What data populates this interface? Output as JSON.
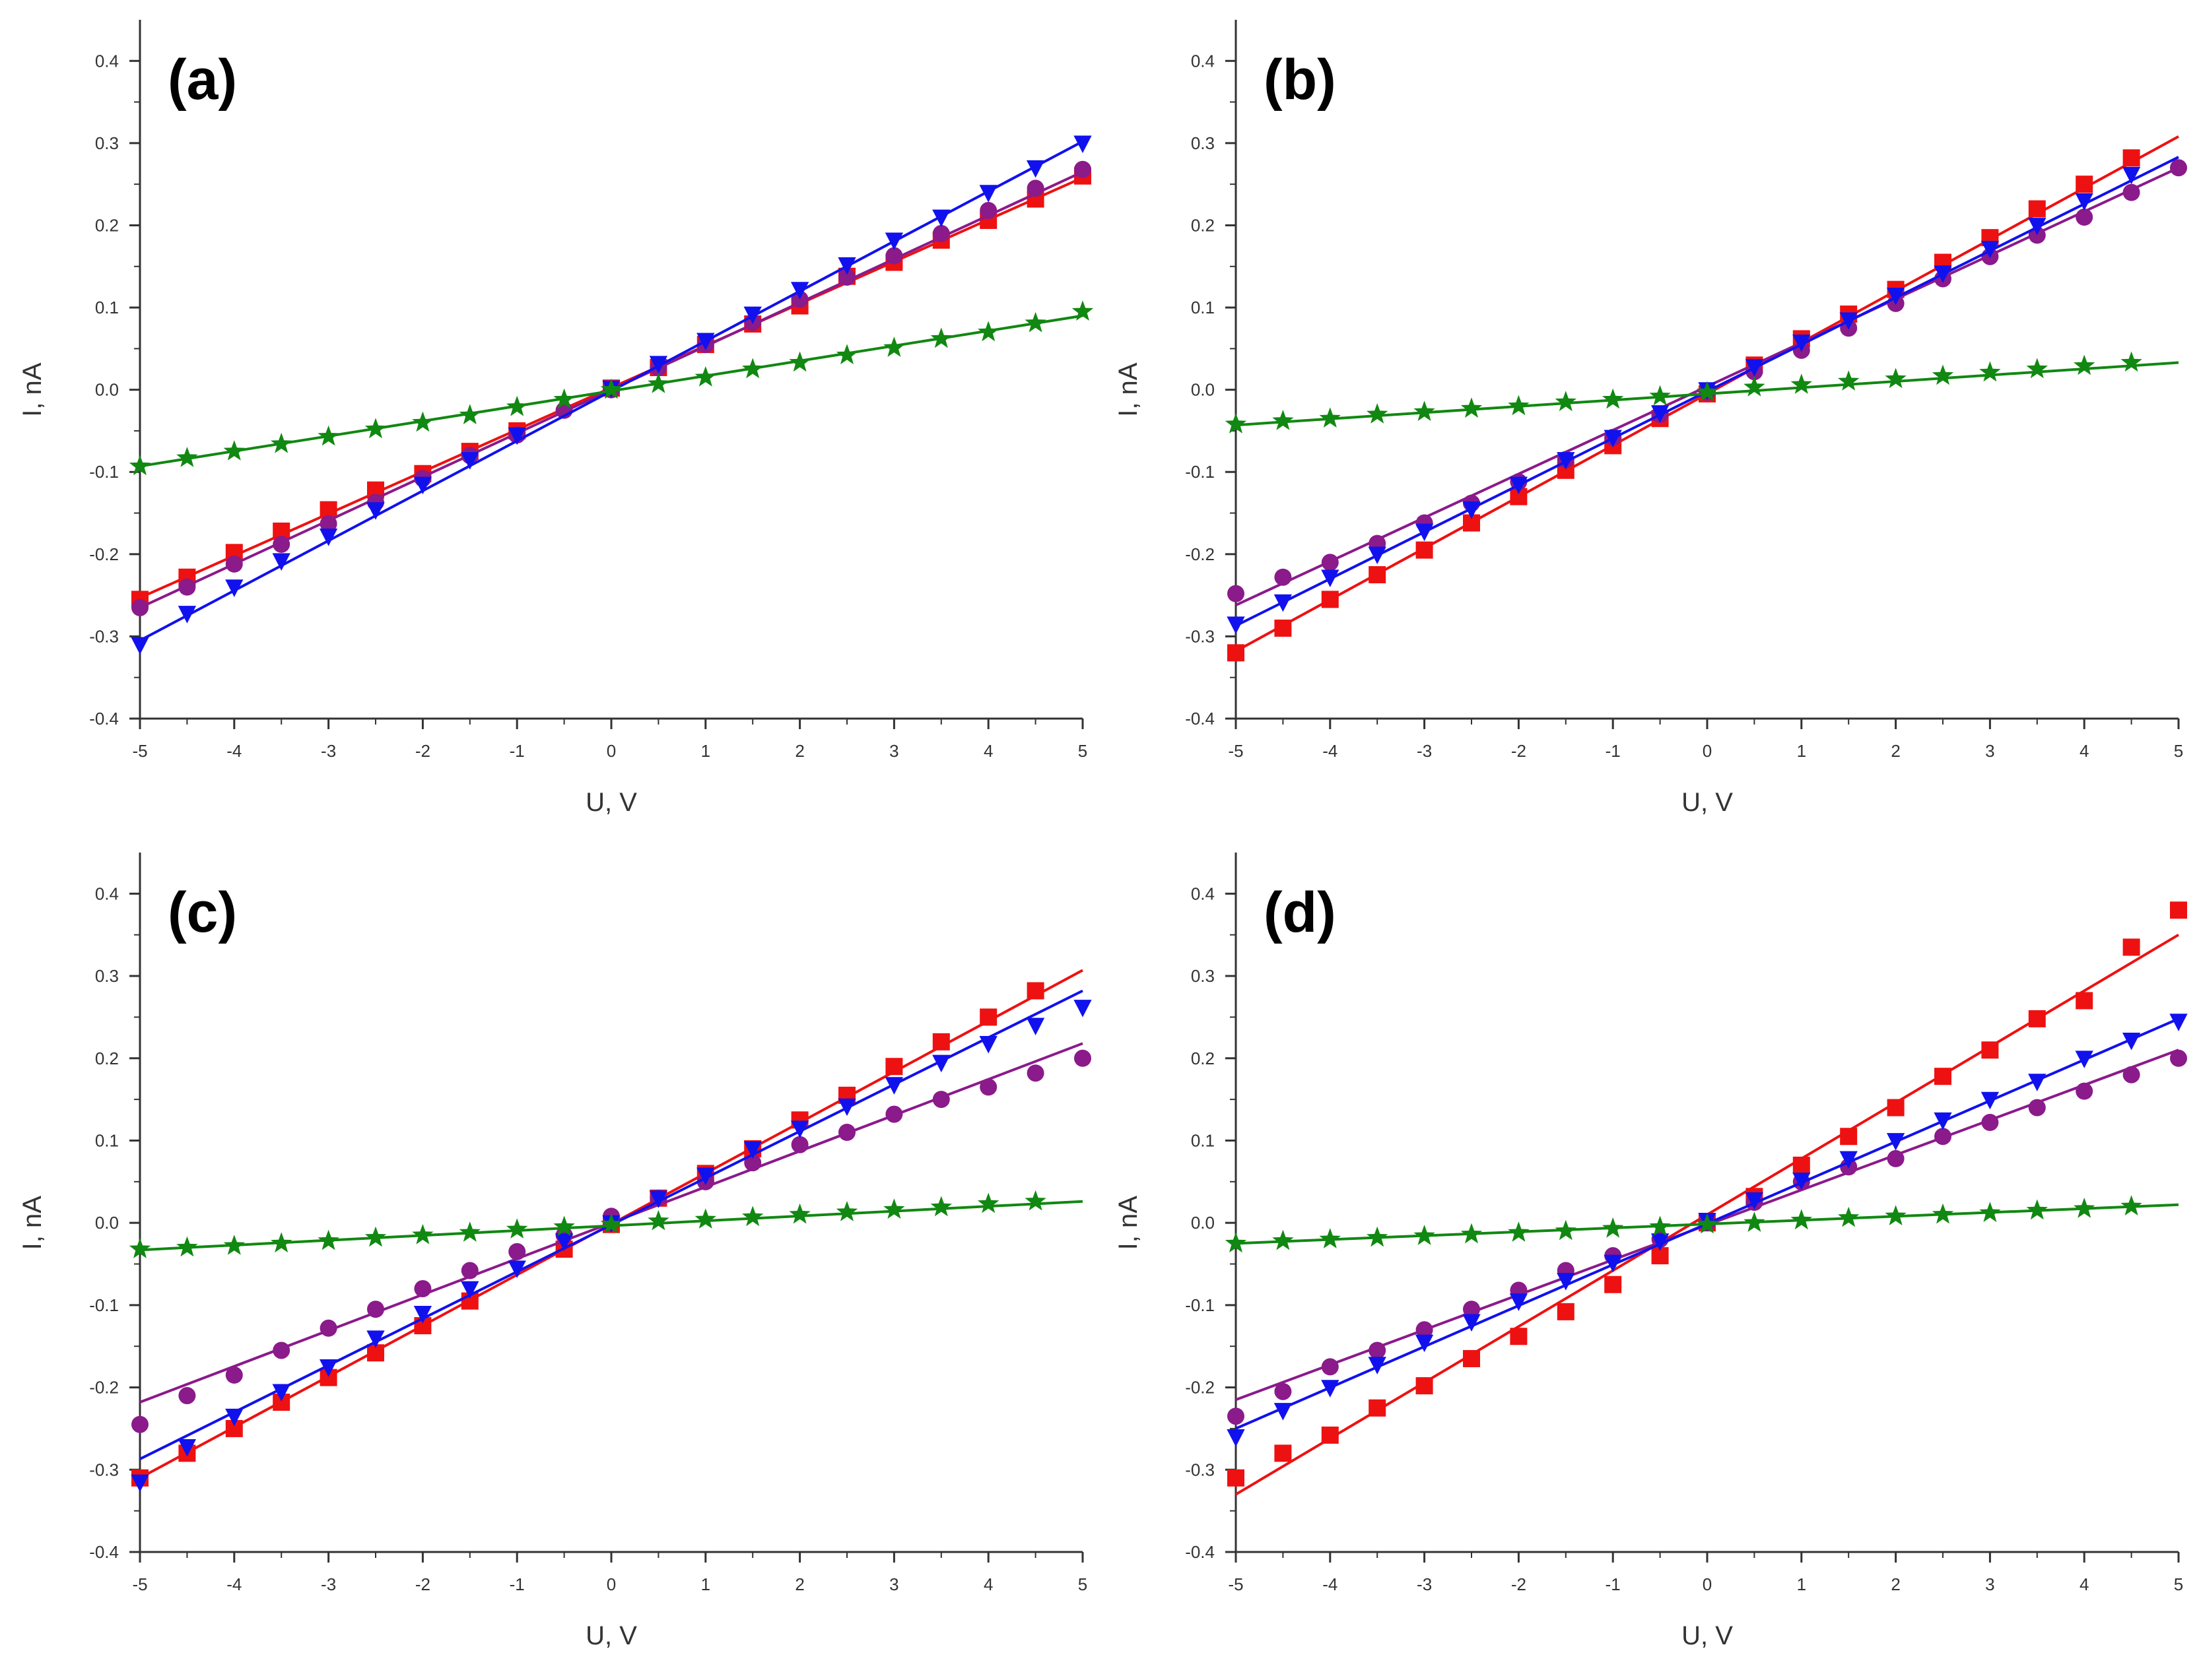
{
  "chart_data": [
    {
      "type": "scatter",
      "panel_label": "(a)",
      "xlabel": "U, V",
      "ylabel": "I, nA",
      "xlim": [
        -5,
        5
      ],
      "ylim": [
        -0.4,
        0.45
      ],
      "xticks": [
        -5,
        -4,
        -3,
        -2,
        -1,
        0,
        1,
        2,
        3,
        4,
        5
      ],
      "xtick_labels": [
        "-5",
        "-4",
        "-3",
        "-2",
        "-1",
        "0",
        "1",
        "2",
        "3",
        "4",
        "5"
      ],
      "yticks": [
        -0.4,
        -0.3,
        -0.2,
        -0.1,
        0.0,
        0.1,
        0.2,
        0.3,
        0.4
      ],
      "ytick_labels": [
        "-0.4",
        "-0.3",
        "-0.2",
        "-0.1",
        "0.0",
        "0.1",
        "0.2",
        "0.3",
        "0.4"
      ],
      "series": [
        {
          "name": "red-squares",
          "marker": "square",
          "color": "#ee1111",
          "x": [
            -5,
            -4.5,
            -4,
            -3.5,
            -3,
            -2.5,
            -2,
            -1.5,
            -1,
            0,
            0.5,
            1,
            1.5,
            2,
            2.5,
            3,
            3.5,
            4,
            4.5,
            5
          ],
          "y": [
            -0.255,
            -0.228,
            -0.198,
            -0.172,
            -0.146,
            -0.122,
            -0.102,
            -0.075,
            -0.05,
            0.002,
            0.027,
            0.055,
            0.08,
            0.102,
            0.138,
            0.155,
            0.182,
            0.206,
            0.232,
            0.26
          ],
          "fit": [
            -0.253,
            0.258
          ]
        },
        {
          "name": "purple-circles",
          "marker": "circle",
          "color": "#8b1a8b",
          "x": [
            -5,
            -4.5,
            -4,
            -3.5,
            -3,
            -2.5,
            -2,
            -1.5,
            -1,
            -0.5,
            0,
            0.5,
            1,
            1.5,
            2,
            2.5,
            3,
            3.5,
            4,
            4.5,
            5
          ],
          "y": [
            -0.265,
            -0.24,
            -0.212,
            -0.188,
            -0.163,
            -0.137,
            -0.108,
            -0.08,
            -0.055,
            -0.025,
            0.0,
            0.027,
            0.055,
            0.082,
            0.11,
            0.137,
            0.163,
            0.19,
            0.218,
            0.245,
            0.268
          ],
          "fit": [
            -0.265,
            0.265
          ]
        },
        {
          "name": "blue-triangles",
          "marker": "triangle-down",
          "color": "#1111ee",
          "x": [
            -5,
            -4.5,
            -4,
            -3.5,
            -3,
            -2.5,
            -2,
            -1.5,
            -1,
            0,
            0.5,
            1,
            1.5,
            2,
            2.5,
            3,
            3.5,
            4,
            4.5,
            5
          ],
          "y": [
            -0.31,
            -0.272,
            -0.24,
            -0.208,
            -0.178,
            -0.146,
            -0.115,
            -0.085,
            -0.055,
            0.002,
            0.032,
            0.06,
            0.092,
            0.122,
            0.152,
            0.182,
            0.21,
            0.24,
            0.27,
            0.3
          ],
          "fit": [
            -0.305,
            0.302
          ]
        },
        {
          "name": "green-stars",
          "marker": "star",
          "color": "#118811",
          "x": [
            -5,
            -4.5,
            -4,
            -3.5,
            -3,
            -2.5,
            -2,
            -1.5,
            -1,
            -0.5,
            0,
            0.5,
            1,
            1.5,
            2,
            2.5,
            3,
            3.5,
            4,
            4.5,
            5
          ],
          "y": [
            -0.093,
            -0.083,
            -0.075,
            -0.066,
            -0.057,
            -0.048,
            -0.04,
            -0.031,
            -0.021,
            -0.012,
            0.0,
            0.007,
            0.015,
            0.025,
            0.033,
            0.042,
            0.051,
            0.062,
            0.07,
            0.081,
            0.095
          ],
          "fit": [
            -0.093,
            0.09
          ]
        }
      ]
    },
    {
      "type": "scatter",
      "panel_label": "(b)",
      "xlabel": "U, V",
      "ylabel": "I, nA",
      "xlim": [
        -5,
        5
      ],
      "ylim": [
        -0.4,
        0.45
      ],
      "xticks": [
        -5,
        -4,
        -3,
        -2,
        -1,
        0,
        1,
        2,
        3,
        4,
        5
      ],
      "xtick_labels": [
        "-5",
        "-4",
        "-3",
        "-2",
        "-1",
        "0",
        "1",
        "2",
        "3",
        "4",
        "5"
      ],
      "yticks": [
        -0.4,
        -0.3,
        -0.2,
        -0.1,
        0.0,
        0.1,
        0.2,
        0.3,
        0.4
      ],
      "ytick_labels": [
        "-0.4",
        "-0.3",
        "-0.2",
        "-0.1",
        "0.0",
        "0.1",
        "0.2",
        "0.3",
        "0.4"
      ],
      "series": [
        {
          "name": "red-squares",
          "marker": "square",
          "color": "#ee1111",
          "x": [
            -5,
            -4.5,
            -4,
            -3.5,
            -3,
            -2.5,
            -2,
            -1.5,
            -1,
            -0.5,
            0,
            0.5,
            1,
            1.5,
            2,
            2.5,
            3,
            3.5,
            4,
            4.5
          ],
          "y": [
            -0.32,
            -0.29,
            -0.255,
            -0.225,
            -0.195,
            -0.162,
            -0.13,
            -0.098,
            -0.068,
            -0.035,
            -0.005,
            0.03,
            0.062,
            0.092,
            0.122,
            0.155,
            0.185,
            0.22,
            0.25,
            0.282
          ],
          "fit": [
            -0.318,
            0.308
          ]
        },
        {
          "name": "purple-circles",
          "marker": "circle",
          "color": "#8b1a8b",
          "x": [
            -5,
            -4.5,
            -4,
            -3.5,
            -3,
            -2.5,
            -2,
            -1.5,
            -1,
            -0.5,
            0,
            0.5,
            1,
            1.5,
            2,
            2.5,
            3,
            3.5,
            4,
            4.5,
            5
          ],
          "y": [
            -0.248,
            -0.228,
            -0.21,
            -0.187,
            -0.162,
            -0.138,
            -0.112,
            -0.085,
            -0.058,
            -0.03,
            -0.003,
            0.022,
            0.048,
            0.075,
            0.105,
            0.135,
            0.162,
            0.188,
            0.21,
            0.24,
            0.27
          ],
          "fit": [
            -0.262,
            0.27
          ]
        },
        {
          "name": "blue-triangles",
          "marker": "triangle-down",
          "color": "#1111ee",
          "x": [
            -5,
            -4.5,
            -4,
            -3.5,
            -3,
            -2.5,
            -2,
            -1.5,
            -1,
            -0.5,
            0,
            0.5,
            1,
            1.5,
            2,
            2.5,
            3,
            3.5,
            4,
            4.5
          ],
          "y": [
            -0.285,
            -0.258,
            -0.228,
            -0.2,
            -0.172,
            -0.145,
            -0.115,
            -0.085,
            -0.058,
            -0.028,
            0.0,
            0.028,
            0.058,
            0.085,
            0.115,
            0.142,
            0.172,
            0.2,
            0.23,
            0.262
          ],
          "fit": [
            -0.287,
            0.283
          ]
        },
        {
          "name": "green-stars",
          "marker": "star",
          "color": "#118811",
          "x": [
            -5,
            -4.5,
            -4,
            -3.5,
            -3,
            -2.5,
            -2,
            -1.5,
            -1,
            -0.5,
            0,
            0.5,
            1,
            1.5,
            2,
            2.5,
            3,
            3.5,
            4,
            4.5
          ],
          "y": [
            -0.042,
            -0.038,
            -0.035,
            -0.03,
            -0.027,
            -0.023,
            -0.02,
            -0.015,
            -0.012,
            -0.008,
            -0.003,
            0.003,
            0.006,
            0.01,
            0.013,
            0.017,
            0.021,
            0.025,
            0.029,
            0.033
          ],
          "fit": [
            -0.043,
            0.033
          ]
        }
      ]
    },
    {
      "type": "scatter",
      "panel_label": "(c)",
      "xlabel": "U, V",
      "ylabel": "I, nA",
      "xlim": [
        -5,
        5
      ],
      "ylim": [
        -0.4,
        0.45
      ],
      "xticks": [
        -5,
        -4,
        -3,
        -2,
        -1,
        0,
        1,
        2,
        3,
        4,
        5
      ],
      "xtick_labels": [
        "-5",
        "-4",
        "-3",
        "-2",
        "-1",
        "0",
        "1",
        "2",
        "3",
        "4",
        "5"
      ],
      "yticks": [
        -0.4,
        -0.3,
        -0.2,
        -0.1,
        0.0,
        0.1,
        0.2,
        0.3,
        0.4
      ],
      "ytick_labels": [
        "-0.4",
        "-0.3",
        "-0.2",
        "-0.1",
        "0.0",
        "0.1",
        "0.2",
        "0.3",
        "0.4"
      ],
      "series": [
        {
          "name": "red-squares",
          "marker": "square",
          "color": "#ee1111",
          "x": [
            -5,
            -4.5,
            -4,
            -3.5,
            -3,
            -2.5,
            -2,
            -1.5,
            -0.5,
            0,
            0.5,
            1,
            1.5,
            2,
            2.5,
            3,
            3.5,
            4,
            4.5
          ],
          "y": [
            -0.31,
            -0.28,
            -0.25,
            -0.218,
            -0.188,
            -0.158,
            -0.125,
            -0.095,
            -0.032,
            -0.002,
            0.03,
            0.06,
            0.09,
            0.125,
            0.155,
            0.19,
            0.22,
            0.25,
            0.282
          ],
          "fit": [
            -0.31,
            0.307
          ]
        },
        {
          "name": "purple-circles",
          "marker": "circle",
          "color": "#8b1a8b",
          "x": [
            -5,
            -4.5,
            -4,
            -3.5,
            -3,
            -2.5,
            -2,
            -1.5,
            -1,
            -0.5,
            0,
            0.5,
            1,
            1.5,
            2,
            2.5,
            3,
            3.5,
            4,
            4.5,
            5
          ],
          "y": [
            -0.245,
            -0.21,
            -0.185,
            -0.155,
            -0.128,
            -0.105,
            -0.08,
            -0.058,
            -0.035,
            -0.015,
            0.008,
            0.03,
            0.05,
            0.073,
            0.095,
            0.11,
            0.132,
            0.15,
            0.165,
            0.182,
            0.2
          ],
          "fit": [
            -0.218,
            0.218
          ]
        },
        {
          "name": "blue-triangles",
          "marker": "triangle-down",
          "color": "#1111ee",
          "x": [
            -5,
            -4.5,
            -4,
            -3.5,
            -3,
            -2.5,
            -2,
            -1.5,
            -1,
            -0.5,
            0,
            0.5,
            1,
            1.5,
            2,
            2.5,
            3,
            3.5,
            4,
            4.5,
            5
          ],
          "y": [
            -0.315,
            -0.272,
            -0.235,
            -0.205,
            -0.175,
            -0.14,
            -0.11,
            -0.08,
            -0.055,
            -0.022,
            0.0,
            0.03,
            0.058,
            0.09,
            0.115,
            0.142,
            0.168,
            0.195,
            0.218,
            0.24,
            0.262
          ],
          "fit": [
            -0.287,
            0.282
          ]
        },
        {
          "name": "green-stars",
          "marker": "star",
          "color": "#118811",
          "x": [
            -5,
            -4.5,
            -4,
            -3.5,
            -3,
            -2.5,
            -2,
            -1.5,
            -1,
            -0.5,
            0,
            0.5,
            1,
            1.5,
            2,
            2.5,
            3,
            3.5,
            4,
            4.5
          ],
          "y": [
            -0.032,
            -0.03,
            -0.028,
            -0.025,
            -0.022,
            -0.018,
            -0.015,
            -0.012,
            -0.008,
            -0.005,
            -0.002,
            0.002,
            0.004,
            0.007,
            0.01,
            0.013,
            0.016,
            0.019,
            0.023,
            0.026
          ],
          "fit": [
            -0.033,
            0.026
          ]
        }
      ]
    },
    {
      "type": "scatter",
      "panel_label": "(d)",
      "xlabel": "U, V",
      "ylabel": "I, nA",
      "xlim": [
        -5,
        5
      ],
      "ylim": [
        -0.4,
        0.45
      ],
      "xticks": [
        -5,
        -4,
        -3,
        -2,
        -1,
        0,
        1,
        2,
        3,
        4,
        5
      ],
      "xtick_labels": [
        "-5",
        "-4",
        "-3",
        "-2",
        "-1",
        "0",
        "1",
        "2",
        "3",
        "4",
        "5"
      ],
      "yticks": [
        -0.4,
        -0.3,
        -0.2,
        -0.1,
        0.0,
        0.1,
        0.2,
        0.3,
        0.4
      ],
      "ytick_labels": [
        "-0.4",
        "-0.3",
        "-0.2",
        "-0.1",
        "0.0",
        "0.1",
        "0.2",
        "0.3",
        "0.4"
      ],
      "series": [
        {
          "name": "red-squares",
          "marker": "square",
          "color": "#ee1111",
          "x": [
            -5,
            -4.5,
            -4,
            -3.5,
            -3,
            -2.5,
            -2,
            -1.5,
            -1,
            -0.5,
            0,
            0.5,
            1,
            1.5,
            2,
            2.5,
            3,
            3.5,
            4,
            4.5,
            5
          ],
          "y": [
            -0.31,
            -0.28,
            -0.258,
            -0.225,
            -0.198,
            -0.165,
            -0.138,
            -0.108,
            -0.075,
            -0.04,
            0.0,
            0.032,
            0.07,
            0.105,
            0.14,
            0.178,
            0.21,
            0.248,
            0.27,
            0.335,
            0.38
          ],
          "fit": [
            -0.33,
            0.35
          ]
        },
        {
          "name": "purple-circles",
          "marker": "circle",
          "color": "#8b1a8b",
          "x": [
            -5,
            -4.5,
            -4,
            -3.5,
            -3,
            -2.5,
            -2,
            -1.5,
            -1,
            -0.5,
            0,
            0.5,
            1,
            1.5,
            2,
            2.5,
            3,
            3.5,
            4,
            4.5,
            5
          ],
          "y": [
            -0.235,
            -0.205,
            -0.175,
            -0.155,
            -0.13,
            -0.105,
            -0.082,
            -0.058,
            -0.04,
            -0.02,
            0.0,
            0.025,
            0.05,
            0.068,
            0.078,
            0.105,
            0.122,
            0.14,
            0.16,
            0.18,
            0.2
          ],
          "fit": [
            -0.215,
            0.21
          ]
        },
        {
          "name": "blue-triangles",
          "marker": "triangle-down",
          "color": "#1111ee",
          "x": [
            -5,
            -4.5,
            -4,
            -3.5,
            -3,
            -2.5,
            -2,
            -1.5,
            -1,
            -0.5,
            0,
            0.5,
            1,
            1.5,
            2,
            2.5,
            3,
            3.5,
            4,
            4.5,
            5
          ],
          "y": [
            -0.26,
            -0.228,
            -0.2,
            -0.172,
            -0.145,
            -0.12,
            -0.095,
            -0.07,
            -0.048,
            -0.022,
            0.003,
            0.028,
            0.052,
            0.078,
            0.1,
            0.125,
            0.15,
            0.172,
            0.2,
            0.222,
            0.245
          ],
          "fit": [
            -0.25,
            0.248
          ]
        },
        {
          "name": "green-stars",
          "marker": "star",
          "color": "#118811",
          "x": [
            -5,
            -4.5,
            -4,
            -3.5,
            -3,
            -2.5,
            -2,
            -1.5,
            -1,
            -0.5,
            0,
            0.5,
            1,
            1.5,
            2,
            2.5,
            3,
            3.5,
            4,
            4.5
          ],
          "y": [
            -0.025,
            -0.022,
            -0.02,
            -0.018,
            -0.016,
            -0.014,
            -0.012,
            -0.01,
            -0.007,
            -0.005,
            -0.002,
            0.0,
            0.003,
            0.006,
            0.008,
            0.01,
            0.012,
            0.015,
            0.017,
            0.02
          ],
          "fit": [
            -0.025,
            0.022
          ]
        }
      ]
    }
  ]
}
